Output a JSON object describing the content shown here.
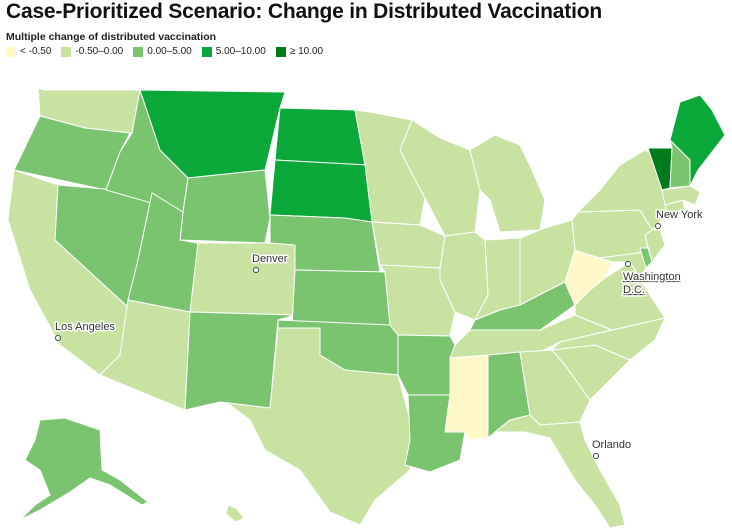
{
  "title": "Case-Prioritized Scenario: Change in Distributed Vaccination",
  "legend": {
    "title": "Multiple change of distributed vaccination",
    "items": [
      {
        "label": "< -0.50",
        "color": "#fff9c9"
      },
      {
        "label": "-0.50–0.00",
        "color": "#c8e3a1"
      },
      {
        "label": "0.00–5.00",
        "color": "#7bc46f"
      },
      {
        "label": "5.00–10.00",
        "color": "#0aa839"
      },
      {
        "label": "≥ 10.00",
        "color": "#007b1c"
      }
    ]
  },
  "cities": {
    "new_york": "New York",
    "washington_1": "Washington",
    "washington_2": "D.C.",
    "denver": "Denver",
    "los_angeles": "Los Angeles",
    "orlando": "Orlando"
  },
  "states": [
    {
      "name": "WA",
      "category": 1
    },
    {
      "name": "OR",
      "category": 2
    },
    {
      "name": "CA",
      "category": 1
    },
    {
      "name": "NV",
      "category": 2
    },
    {
      "name": "ID",
      "category": 2
    },
    {
      "name": "MT",
      "category": 3
    },
    {
      "name": "WY",
      "category": 2
    },
    {
      "name": "UT",
      "category": 2
    },
    {
      "name": "AZ",
      "category": 1
    },
    {
      "name": "CO",
      "category": 1
    },
    {
      "name": "NM",
      "category": 2
    },
    {
      "name": "ND",
      "category": 3
    },
    {
      "name": "SD",
      "category": 3
    },
    {
      "name": "NE",
      "category": 2
    },
    {
      "name": "KS",
      "category": 2
    },
    {
      "name": "OK",
      "category": 2
    },
    {
      "name": "TX",
      "category": 1
    },
    {
      "name": "MN",
      "category": 1
    },
    {
      "name": "IA",
      "category": 1
    },
    {
      "name": "MO",
      "category": 1
    },
    {
      "name": "AR",
      "category": 2
    },
    {
      "name": "LA",
      "category": 2
    },
    {
      "name": "WI",
      "category": 1
    },
    {
      "name": "IL",
      "category": 1
    },
    {
      "name": "MI",
      "category": 1
    },
    {
      "name": "IN",
      "category": 1
    },
    {
      "name": "OH",
      "category": 1
    },
    {
      "name": "KY",
      "category": 2
    },
    {
      "name": "TN",
      "category": 1
    },
    {
      "name": "MS",
      "category": 0
    },
    {
      "name": "AL",
      "category": 2
    },
    {
      "name": "GA",
      "category": 1
    },
    {
      "name": "FL",
      "category": 1
    },
    {
      "name": "SC",
      "category": 1
    },
    {
      "name": "NC",
      "category": 1
    },
    {
      "name": "VA",
      "category": 1
    },
    {
      "name": "WV",
      "category": 0
    },
    {
      "name": "PA",
      "category": 1
    },
    {
      "name": "NY",
      "category": 1
    },
    {
      "name": "ME",
      "category": 3
    },
    {
      "name": "VT",
      "category": 4
    },
    {
      "name": "NH",
      "category": 2
    },
    {
      "name": "MA",
      "category": 1
    },
    {
      "name": "CT",
      "category": 1
    },
    {
      "name": "NJ",
      "category": 1
    },
    {
      "name": "DE",
      "category": 2
    },
    {
      "name": "MD",
      "category": 1
    },
    {
      "name": "AK",
      "category": 2
    },
    {
      "name": "HI",
      "category": 1
    }
  ]
}
